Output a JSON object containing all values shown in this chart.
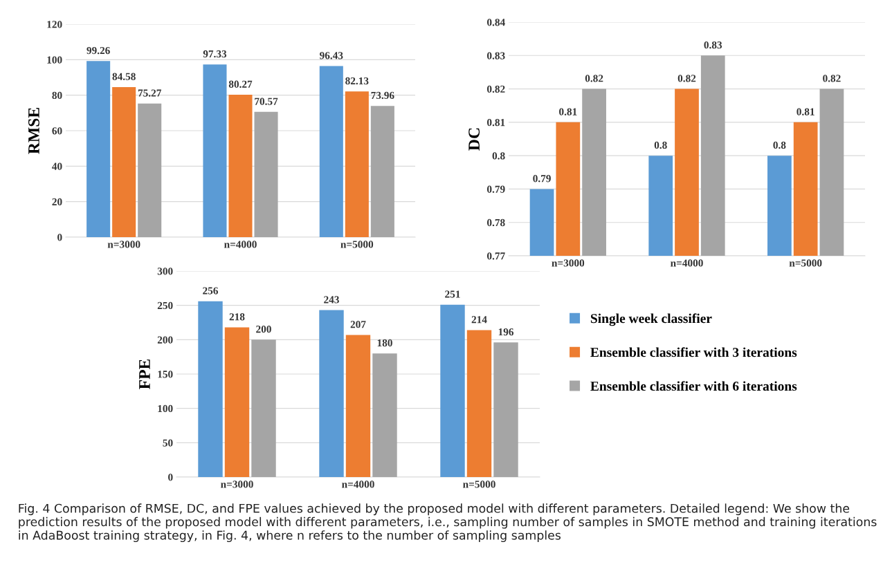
{
  "chart_data": [
    {
      "type": "bar",
      "ylabel": "RMSE",
      "categories": [
        "n=3000",
        "n=4000",
        "n=5000"
      ],
      "series": [
        {
          "color": "#5b9bd5",
          "values": [
            99.26,
            97.33,
            96.43
          ]
        },
        {
          "color": "#ed7d31",
          "values": [
            84.58,
            80.27,
            82.13
          ]
        },
        {
          "color": "#a5a5a5",
          "values": [
            75.27,
            70.57,
            73.96
          ]
        }
      ],
      "ylim": [
        0,
        120
      ],
      "yticks": [
        0,
        20,
        40,
        60,
        80,
        100,
        120
      ],
      "grid": "y",
      "data_labels": true,
      "annotations": [
        "Fig. 4 Comparison of RMSE, DC, and FPE values achieved by the proposed model with different parameters. Detailed legend: We show the prediction results of the proposed model with different parameters, i.e., sampling number of samples in SMOTE method and training iterations in AdaBoost training strategy, in Fig. 4, where n refers to the number of sampling samples"
      ]
    },
    {
      "type": "bar",
      "ylabel": "DC",
      "categories": [
        "n=3000",
        "n=4000",
        "n=5000"
      ],
      "series": [
        {
          "color": "#5b9bd5",
          "values": [
            0.79,
            0.8,
            0.8
          ]
        },
        {
          "color": "#ed7d31",
          "values": [
            0.81,
            0.82,
            0.81
          ]
        },
        {
          "color": "#a5a5a5",
          "values": [
            0.82,
            0.83,
            0.82
          ]
        }
      ],
      "ylim": [
        0.77,
        0.84
      ],
      "yticks": [
        0.77,
        0.78,
        0.79,
        0.8,
        0.81,
        0.82,
        0.83,
        0.84
      ],
      "grid": "y",
      "data_labels": true
    },
    {
      "type": "bar",
      "ylabel": "FPE",
      "categories": [
        "n=3000",
        "n=4000",
        "n=5000"
      ],
      "series": [
        {
          "name": "Single week classifier",
          "color": "#5b9bd5",
          "values": [
            256,
            243,
            251
          ]
        },
        {
          "name": "Ensemble classifier with 3 iterations",
          "color": "#ed7d31",
          "values": [
            218,
            207,
            214
          ]
        },
        {
          "name": "Ensemble classifier with 6 iterations",
          "color": "#a5a5a5",
          "values": [
            200,
            180,
            196
          ]
        }
      ],
      "ylim": [
        0,
        300
      ],
      "yticks": [
        0,
        50,
        100,
        150,
        200,
        250,
        300
      ],
      "grid": "y",
      "data_labels": true,
      "legend": "right"
    }
  ]
}
